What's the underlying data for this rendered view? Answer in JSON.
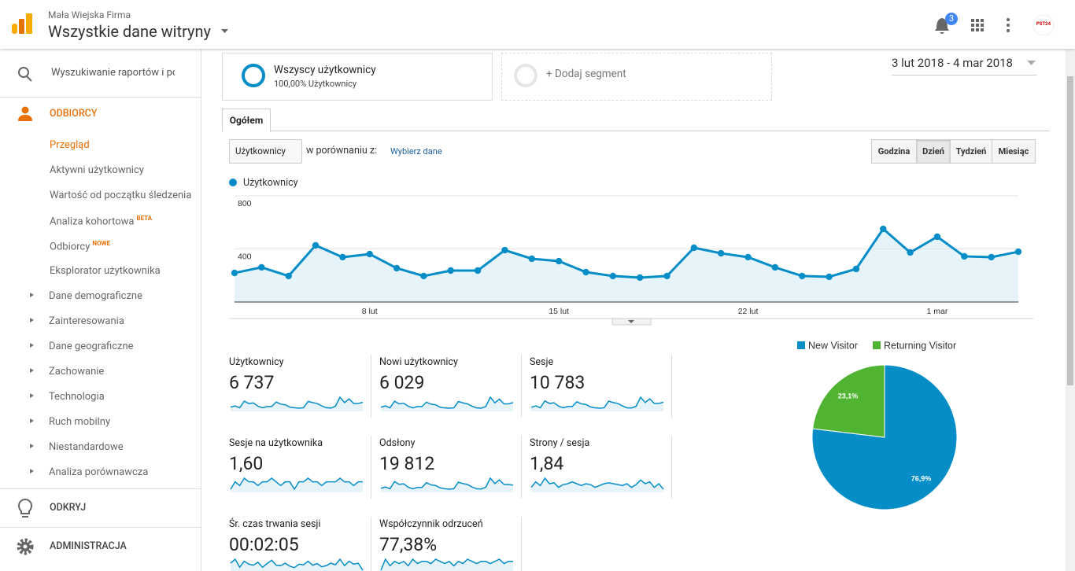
{
  "header": {
    "account": "Mała Wiejska Firma",
    "property": "Wszystkie dane witryny",
    "notifications": 3,
    "avatar": "PST24"
  },
  "sidebar": {
    "search_placeholder": "Wyszukiwanie raportów i pomocy",
    "sections": [
      {
        "label": "ODBIORCY",
        "active": true,
        "items": [
          {
            "label": "Przegląd",
            "active": true
          },
          {
            "label": "Aktywni użytkownicy"
          },
          {
            "label": "Wartość od początku śledzenia"
          },
          {
            "label": "Analiza kohortowa",
            "badge": "BETA"
          },
          {
            "label": "Odbiorcy",
            "badge": "NOWE"
          },
          {
            "label": "Eksplorator użytkownika"
          },
          {
            "label": "Dane demograficzne",
            "expandable": true
          },
          {
            "label": "Zainteresowania",
            "expandable": true
          },
          {
            "label": "Dane geograficzne",
            "expandable": true
          },
          {
            "label": "Zachowanie",
            "expandable": true
          },
          {
            "label": "Technologia",
            "expandable": true
          },
          {
            "label": "Ruch mobilny",
            "expandable": true
          },
          {
            "label": "Niestandardowe",
            "expandable": true
          },
          {
            "label": "Analiza porównawcza",
            "expandable": true
          }
        ]
      },
      {
        "label": "ODKRYJ"
      },
      {
        "label": "ADMINISTRACJA"
      }
    ]
  },
  "segments": [
    {
      "name": "Wszyscy użytkownicy",
      "detail": "100,00% Użytkownicy"
    },
    {
      "name": "+ Dodaj segment"
    }
  ],
  "date_range": "3 lut 2018 - 4 mar 2018",
  "tabs": [
    "Ogółem"
  ],
  "metric_selector": "Użytkownicy",
  "compare_label": "w porównaniu z:",
  "compare_link": "Wybierz dane",
  "granularity": [
    "Godzina",
    "Dzień",
    "Tydzień",
    "Miesiąc"
  ],
  "active_granularity": "Dzień",
  "chart_data": [
    {
      "type": "line",
      "categories": [
        null,
        null,
        null,
        null,
        null,
        "8 lut",
        null,
        null,
        null,
        null,
        null,
        null,
        "15 lut",
        null,
        null,
        null,
        null,
        null,
        null,
        "22 lut",
        null,
        null,
        null,
        null,
        null,
        null,
        "1 mar",
        null,
        null,
        null
      ],
      "series": [
        {
          "name": "Użytkownicy",
          "color": "#058dc7",
          "values": [
            219,
            261,
            196,
            427,
            338,
            361,
            255,
            196,
            237,
            237,
            391,
            326,
            308,
            225,
            196,
            184,
            196,
            409,
            367,
            338,
            261,
            196,
            190,
            249,
            551,
            373,
            492,
            344,
            338,
            379
          ]
        }
      ],
      "ylim": [
        0,
        800
      ],
      "yticks": [
        400,
        800
      ],
      "grid": true
    },
    {
      "type": "pie",
      "categories": [
        "New Visitor",
        "Returning Visitor"
      ],
      "values": [
        76.9,
        23.1
      ],
      "value_labels": [
        "76,9%",
        "23,1%"
      ],
      "colors": [
        "#058dc7",
        "#50b432"
      ],
      "legend": "top"
    }
  ],
  "metrics": [
    {
      "label": "Użytkownicy",
      "value": "6 737",
      "sparkline": [
        220,
        260,
        200,
        420,
        340,
        360,
        250,
        200,
        240,
        240,
        390,
        320,
        300,
        220,
        200,
        185,
        200,
        410,
        370,
        340,
        260,
        200,
        190,
        250,
        550,
        370,
        490,
        340,
        340,
        380
      ]
    },
    {
      "label": "Nowi użytkownicy",
      "value": "6 029",
      "sparkline": [
        200,
        240,
        180,
        380,
        300,
        320,
        230,
        180,
        220,
        220,
        350,
        290,
        270,
        200,
        180,
        170,
        180,
        370,
        330,
        300,
        230,
        180,
        170,
        220,
        500,
        330,
        440,
        300,
        300,
        340
      ]
    },
    {
      "label": "Sesje",
      "value": "10 783",
      "sparkline": [
        330,
        400,
        310,
        640,
        520,
        550,
        390,
        310,
        370,
        370,
        600,
        500,
        470,
        350,
        310,
        290,
        310,
        630,
        560,
        520,
        400,
        310,
        300,
        380,
        820,
        560,
        740,
        520,
        520,
        580
      ]
    },
    {
      "label": "Sesje na użytkownika",
      "value": "1,60",
      "sparkline": [
        1.58,
        1.6,
        1.59,
        1.61,
        1.6,
        1.6,
        1.59,
        1.6,
        1.6,
        1.61,
        1.6,
        1.59,
        1.6,
        1.6,
        1.58,
        1.6,
        1.6,
        1.61,
        1.6,
        1.6,
        1.59,
        1.6,
        1.6,
        1.6,
        1.61,
        1.6,
        1.6,
        1.59,
        1.6,
        1.6
      ]
    },
    {
      "label": "Odsłony",
      "value": "19 812",
      "sparkline": [
        600,
        720,
        560,
        1200,
        950,
        1000,
        700,
        560,
        680,
        680,
        1100,
        900,
        850,
        640,
        560,
        520,
        560,
        1150,
        1020,
        940,
        720,
        560,
        540,
        700,
        1500,
        1020,
        1350,
        940,
        940,
        880
      ]
    },
    {
      "label": "Strony / sesja",
      "value": "1,84",
      "sparkline": [
        1.8,
        1.86,
        1.82,
        1.9,
        1.84,
        1.85,
        1.8,
        1.83,
        1.84,
        1.86,
        1.84,
        1.82,
        1.84,
        1.83,
        1.8,
        1.82,
        1.84,
        1.85,
        1.84,
        1.83,
        1.82,
        1.84,
        1.8,
        1.83,
        1.88,
        1.84,
        1.86,
        1.8,
        1.84,
        1.78
      ]
    },
    {
      "label": "Śr. czas trwania sesji",
      "value": "00:02:05",
      "sparkline": [
        130,
        150,
        110,
        140,
        125,
        120,
        135,
        110,
        128,
        145,
        120,
        118,
        130,
        115,
        108,
        125,
        122,
        140,
        120,
        128,
        112,
        118,
        130,
        122,
        150,
        118,
        140,
        125,
        130,
        95
      ]
    },
    {
      "label": "Współczynnik odrzuceń",
      "value": "77,38%",
      "sparkline": [
        77,
        77.5,
        77.2,
        77.4,
        77.3,
        77.4,
        77.2,
        77.5,
        77.3,
        77.4,
        77.4,
        77.3,
        77.5,
        77.4,
        77.3,
        77.4,
        77.2,
        77.4,
        77.3,
        77.5,
        77.4,
        77.3,
        77.4,
        77.4,
        77.3,
        77.4,
        77.5,
        77.3,
        77.4,
        77.4
      ]
    }
  ]
}
